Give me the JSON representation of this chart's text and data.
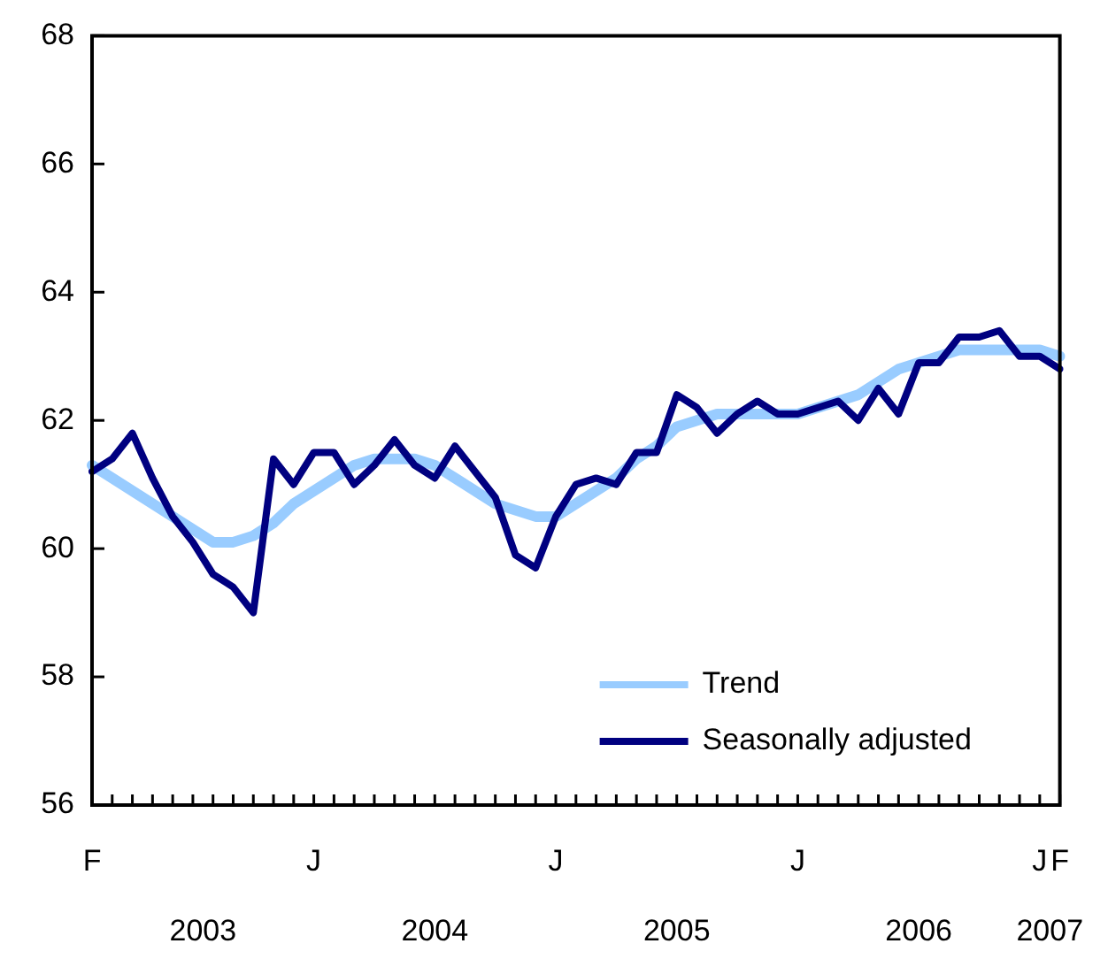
{
  "chart_data": {
    "type": "line",
    "categories": [
      "F",
      null,
      null,
      null,
      null,
      null,
      null,
      null,
      null,
      null,
      null,
      "J",
      null,
      null,
      null,
      null,
      null,
      null,
      null,
      null,
      null,
      null,
      null,
      "J",
      null,
      null,
      null,
      null,
      null,
      null,
      null,
      null,
      null,
      null,
      null,
      "J",
      null,
      null,
      null,
      null,
      null,
      null,
      null,
      null,
      null,
      null,
      null,
      "J",
      "F"
    ],
    "series": [
      {
        "name": "Trend",
        "color": "#99ccff",
        "values": [
          61.3,
          61.1,
          60.9,
          60.7,
          60.5,
          60.3,
          60.1,
          60.1,
          60.2,
          60.4,
          60.7,
          60.9,
          61.1,
          61.3,
          61.4,
          61.4,
          61.4,
          61.3,
          61.1,
          60.9,
          60.7,
          60.6,
          60.5,
          60.5,
          60.7,
          60.9,
          61.1,
          61.4,
          61.6,
          61.9,
          62.0,
          62.1,
          62.1,
          62.1,
          62.1,
          62.1,
          62.2,
          62.3,
          62.4,
          62.6,
          62.8,
          62.9,
          63.0,
          63.1,
          63.1,
          63.1,
          63.1,
          63.1,
          63.0
        ]
      },
      {
        "name": "Seasonally adjusted",
        "color": "#000080",
        "values": [
          61.2,
          61.4,
          61.8,
          61.1,
          60.5,
          60.1,
          59.6,
          59.4,
          59.0,
          61.4,
          61.0,
          61.5,
          61.5,
          61.0,
          61.3,
          61.7,
          61.3,
          61.1,
          61.6,
          61.2,
          60.8,
          59.9,
          59.7,
          60.5,
          61.0,
          61.1,
          61.0,
          61.5,
          61.5,
          62.4,
          62.2,
          61.8,
          62.1,
          62.3,
          62.1,
          62.1,
          62.2,
          62.3,
          62.0,
          62.5,
          62.1,
          62.9,
          62.9,
          63.3,
          63.3,
          63.4,
          63.0,
          63.0,
          62.8
        ]
      }
    ],
    "ylim": [
      56,
      68
    ],
    "yticks": [
      56,
      58,
      60,
      62,
      64,
      66,
      68
    ],
    "annotations": [
      "2003",
      "2004",
      "2005",
      "2006",
      "2007"
    ],
    "legend": "bottom right",
    "marker": "none",
    "line_style": "solid"
  }
}
